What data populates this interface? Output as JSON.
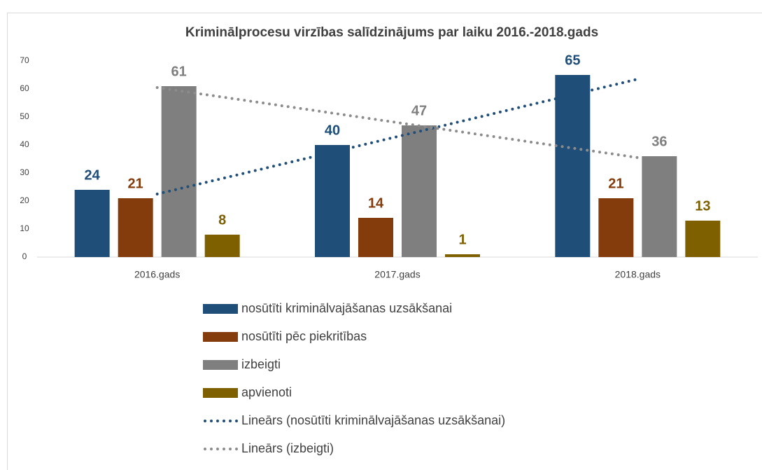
{
  "chart_data": {
    "type": "bar",
    "title": "Kriminālprocesu  virzības salīdzinājums  par laiku 2016.-2018.gads",
    "categories": [
      "2016.gads",
      "2017.gads",
      "2018.gads"
    ],
    "series": [
      {
        "name": "nosūtīti kriminālvajāšanas uzsākšanai",
        "color": "#1f4e79",
        "values": [
          24,
          40,
          65
        ]
      },
      {
        "name": "nosūtīti pēc piekritības",
        "color": "#843c0c",
        "values": [
          21,
          14,
          21
        ]
      },
      {
        "name": "izbeigti",
        "color": "#7f7f7f",
        "values": [
          61,
          47,
          36
        ]
      },
      {
        "name": "apvienoti",
        "color": "#7f6000",
        "values": [
          8,
          1,
          13
        ]
      }
    ],
    "trendlines": [
      {
        "name": "Lineārs (nosūtīti kriminālvajāšanas uzsākšanai)",
        "color": "#1f4e79",
        "series_index": 0
      },
      {
        "name": "Lineārs (izbeigti)",
        "color": "#8c8c8c",
        "series_index": 2
      }
    ],
    "ylim": [
      0,
      70
    ],
    "yticks": [
      0,
      10,
      20,
      30,
      40,
      50,
      60,
      70
    ],
    "grid": false,
    "legend": "bottom"
  }
}
